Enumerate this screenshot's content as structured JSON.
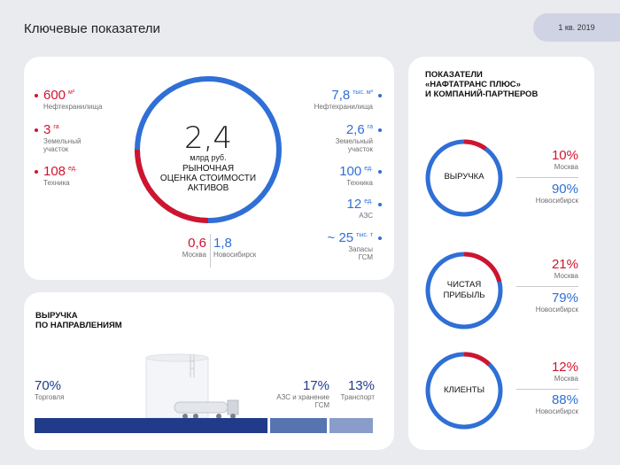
{
  "header": {
    "title": "Ключевые показатели",
    "period": "1 кв. 2019"
  },
  "valuation": {
    "value": "2,4",
    "unit": "млрд руб.",
    "caption_lines": [
      "РЫНОЧНАЯ",
      "ОЦЕНКА СТОИМОСТИ",
      "АКТИВОВ"
    ],
    "moscow_value": "0,6",
    "moscow_label": "Москва",
    "novosibirsk_value": "1,8",
    "novosibirsk_label": "Новосибирск",
    "moscow_share": 0.25,
    "left_stats": [
      {
        "value": "600",
        "unit": "м²",
        "label_lines": [
          "Нефтехранилища"
        ]
      },
      {
        "value": "3",
        "unit": "га",
        "label_lines": [
          "Земельный",
          "участок"
        ]
      },
      {
        "value": "108",
        "unit": "ед.",
        "label_lines": [
          "Техника"
        ]
      }
    ],
    "right_stats": [
      {
        "value": "7,8",
        "unit": "тыс. м³",
        "label_lines": [
          "Нефтехранилища"
        ]
      },
      {
        "value": "2,6",
        "unit": "га",
        "label_lines": [
          "Земельный",
          "участок"
        ]
      },
      {
        "value": "100",
        "unit": "ед.",
        "label_lines": [
          "Техника"
        ]
      },
      {
        "value": "12",
        "unit": "ед.",
        "label_lines": [
          "АЗС"
        ]
      },
      {
        "value": "~ 25",
        "unit": "тыс. т",
        "label_lines": [
          "Запасы",
          "ГСМ"
        ]
      }
    ]
  },
  "revenue": {
    "title_lines": [
      "ВЫРУЧКА",
      "ПО НАПРАВЛЕНИЯМ"
    ],
    "segments": [
      {
        "pct": "70%",
        "label_lines": [
          "Торговля"
        ],
        "share": 0.7,
        "color": "#1f3b8a"
      },
      {
        "pct": "17%",
        "label_lines": [
          "АЗС и хранение",
          "ГСМ"
        ],
        "share": 0.17,
        "color": "#5574b0"
      },
      {
        "pct": "13%",
        "label_lines": [
          "Транспорт"
        ],
        "share": 0.13,
        "color": "#8a9cc9"
      }
    ]
  },
  "partners": {
    "title_lines": [
      "ПОКАЗАТЕЛИ",
      "«НАФТАТРАНС ПЛЮС»",
      "И КОМПАНИЙ-ПАРТНЕРОВ"
    ],
    "items": [
      {
        "label_lines": [
          "ВЫРУЧКА"
        ],
        "moscow_pct": "10%",
        "moscow_label": "Москва",
        "novosibirsk_pct": "90%",
        "novosibirsk_label": "Новосибирск",
        "moscow_share": 0.1
      },
      {
        "label_lines": [
          "ЧИСТАЯ",
          "ПРИБЫЛЬ"
        ],
        "moscow_pct": "21%",
        "moscow_label": "Москва",
        "novosibirsk_pct": "79%",
        "novosibirsk_label": "Новосибирск",
        "moscow_share": 0.21
      },
      {
        "label_lines": [
          "КЛИЕНТЫ"
        ],
        "moscow_pct": "12%",
        "moscow_label": "Москва",
        "novosibirsk_pct": "88%",
        "novosibirsk_label": "Новосибирск",
        "moscow_share": 0.12
      }
    ]
  },
  "colors": {
    "red": "#d0142e",
    "blue": "#2f6fd6",
    "navy": "#1f3b8a"
  }
}
